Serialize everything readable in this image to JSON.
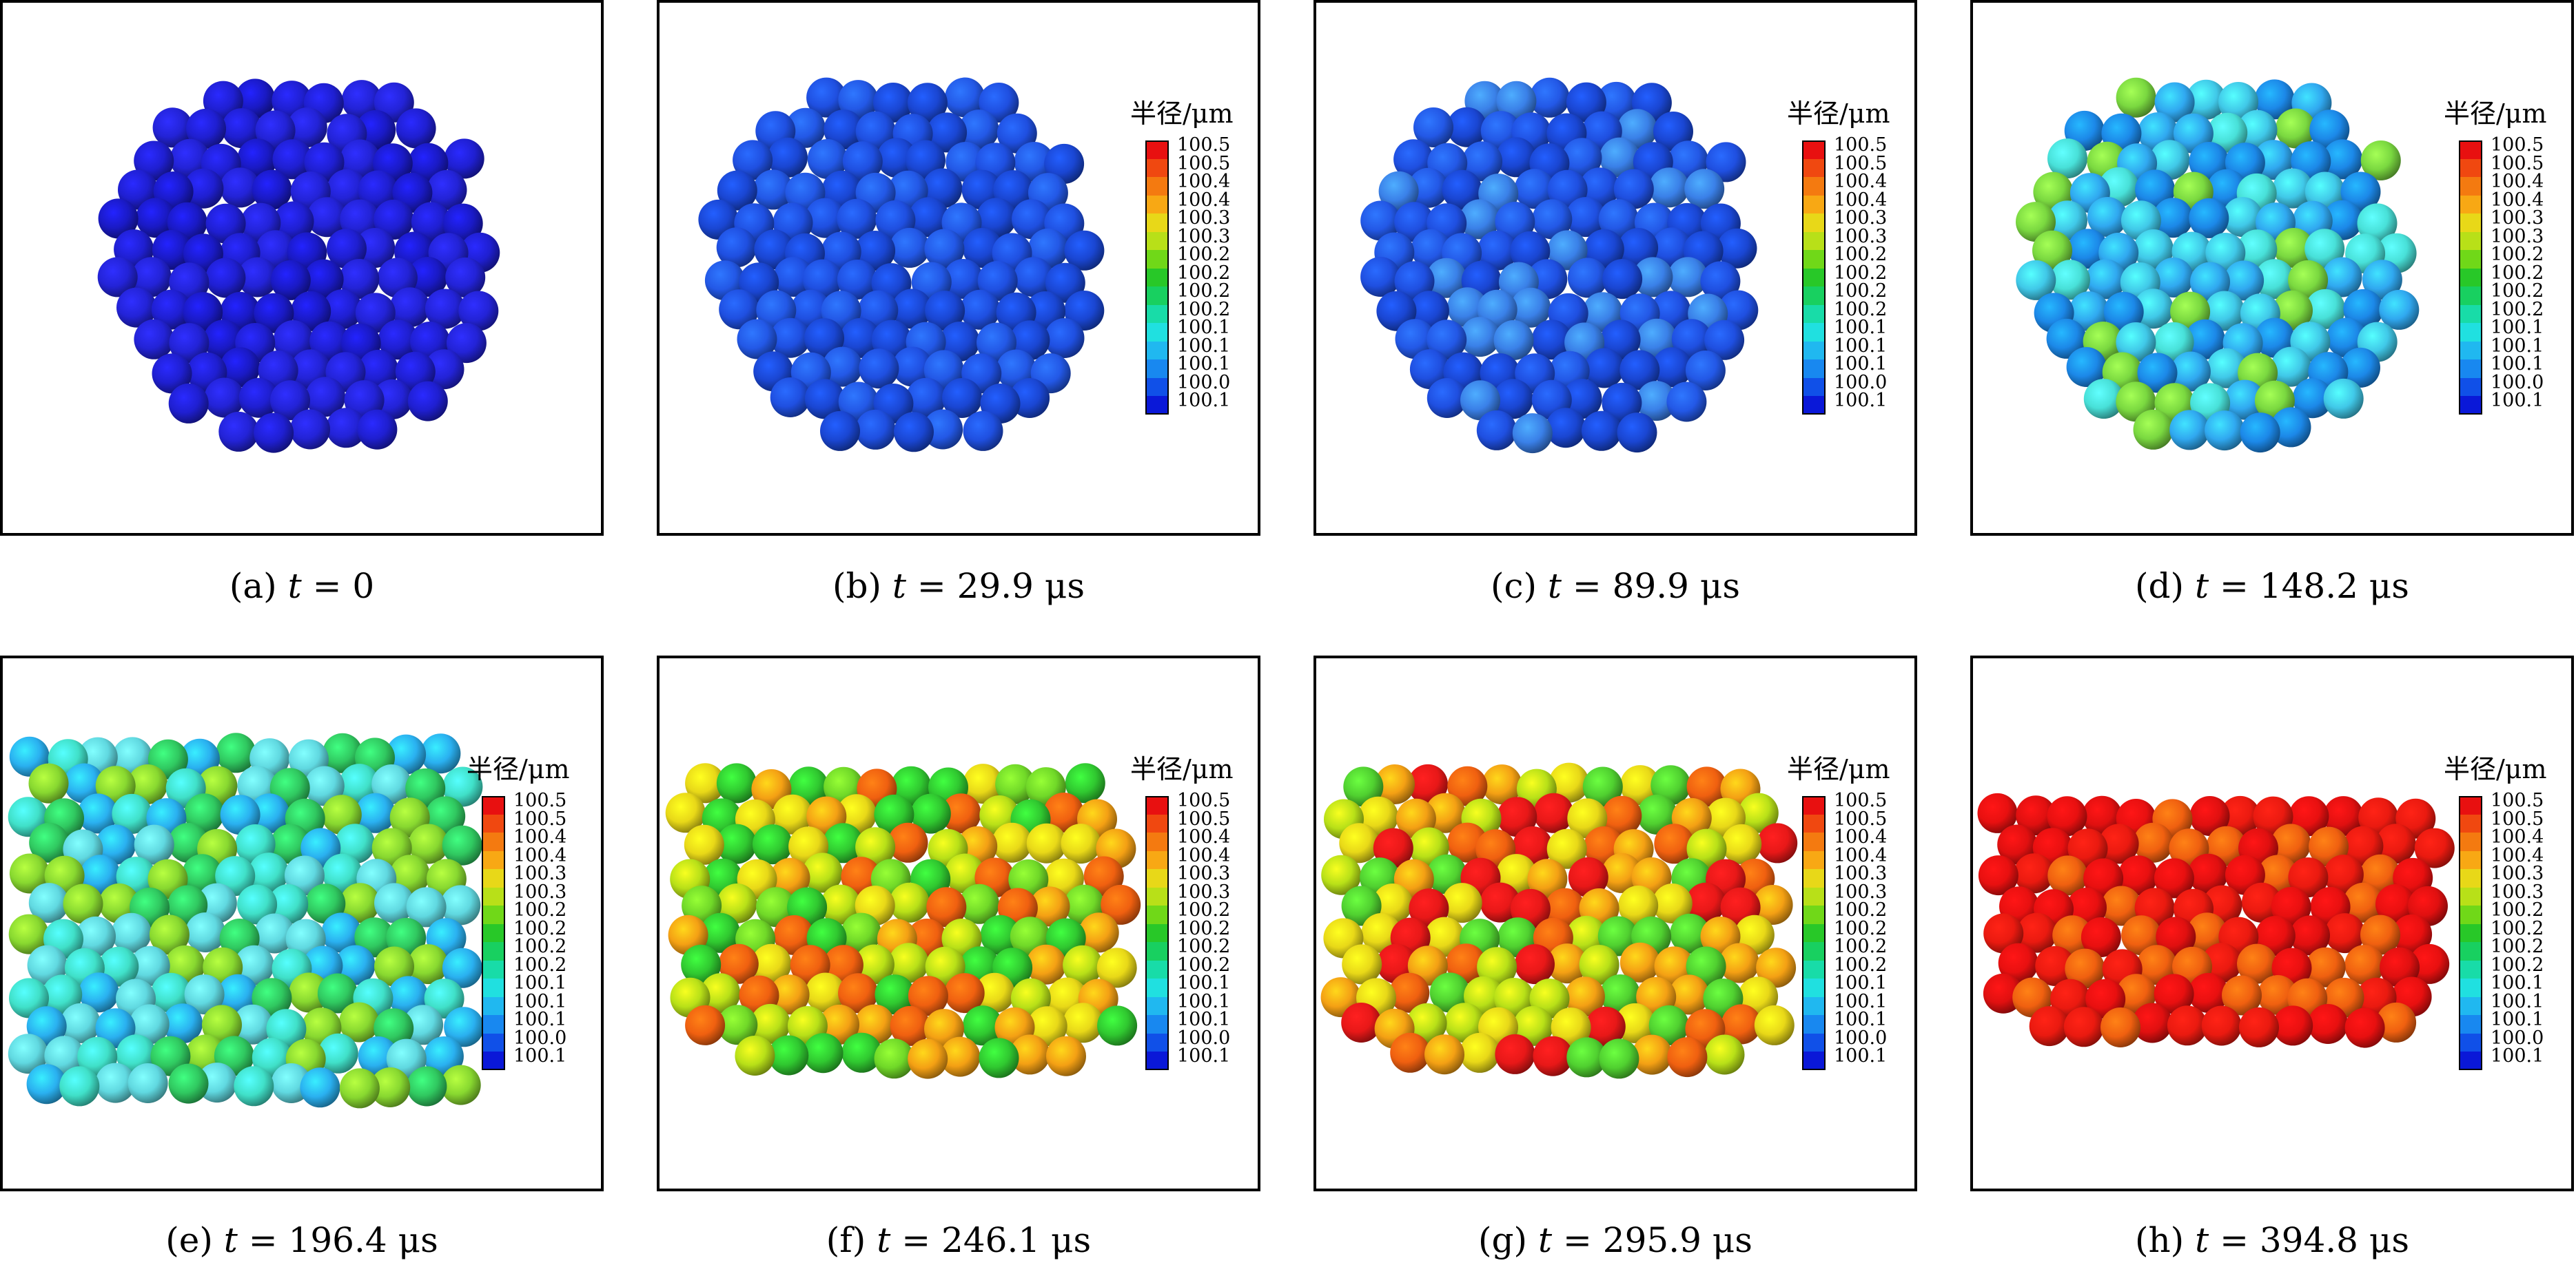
{
  "legend": {
    "title": "半径/μm",
    "ticks": [
      "100.5",
      "100.5",
      "100.4",
      "100.4",
      "100.3",
      "100.3",
      "100.2",
      "100.2",
      "100.2",
      "100.2",
      "100.1",
      "100.1",
      "100.1",
      "100.0",
      "100.1"
    ],
    "colors": [
      "#e81010",
      "#f04810",
      "#f47a10",
      "#f8a814",
      "#e8d818",
      "#b8e018",
      "#70d818",
      "#28c828",
      "#18d060",
      "#18dca8",
      "#20e0e0",
      "#20b8f0",
      "#1888f0",
      "#1050e8",
      "#0a18d8"
    ]
  },
  "panels": [
    {
      "label": "(a)",
      "time_var": "t",
      "time_value": "= 0",
      "palette": [
        "#1f1fd0",
        "#2323d6",
        "#1a1ac4"
      ],
      "legend": false
    },
    {
      "label": "(b)",
      "time_var": "t",
      "time_value": "= 29.9 μs",
      "palette": [
        "#1f4fe0",
        "#2358e6",
        "#1a46d2"
      ],
      "legend": true
    },
    {
      "label": "(c)",
      "time_var": "t",
      "time_value": "= 89.9 μs",
      "palette": [
        "#1f4fe0",
        "#2358e6",
        "#1a46d2",
        "#3a80e8"
      ],
      "legend": true
    },
    {
      "label": "(d)",
      "time_var": "t",
      "time_value": "= 148.2 μs",
      "palette": [
        "#40c8e8",
        "#30a8f0",
        "#48e0d8",
        "#1c88e8",
        "#7ad840"
      ],
      "legend": true
    },
    {
      "label": "(e)",
      "time_var": "t",
      "time_value": "= 196.4 μs",
      "palette": [
        "#40e0c8",
        "#30c860",
        "#60d8e0",
        "#88d830",
        "#2ab0f0"
      ],
      "legend": true
    },
    {
      "label": "(f)",
      "time_var": "t",
      "time_value": "= 246.1 μs",
      "palette": [
        "#30c830",
        "#70d828",
        "#b8e018",
        "#e8d818",
        "#f4a014",
        "#f06010"
      ],
      "legend": true
    },
    {
      "label": "(g)",
      "time_var": "t",
      "time_value": "= 295.9 μs",
      "palette": [
        "#e81818",
        "#f06010",
        "#f4a014",
        "#e8d818",
        "#b8e018",
        "#50d030"
      ],
      "legend": true
    },
    {
      "label": "(h)",
      "time_var": "t",
      "time_value": "= 394.8 μs",
      "palette": [
        "#e81010",
        "#e01010",
        "#ea1a10",
        "#f06010"
      ],
      "legend": true
    }
  ]
}
